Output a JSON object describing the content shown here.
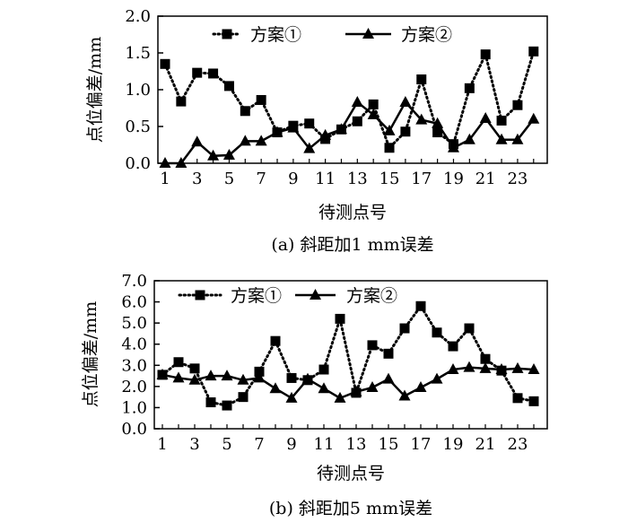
{
  "chart_data": [
    {
      "type": "line",
      "caption": "(a) 斜距加1 mm误差",
      "xlabel": "待测点号",
      "ylabel": "点位偏差/mm",
      "ylim": [
        0,
        2.0
      ],
      "yticks": [
        "0.0",
        "0.5",
        "1.0",
        "1.5",
        "2.0"
      ],
      "xticks": [
        "1",
        "3",
        "5",
        "7",
        "9",
        "11",
        "13",
        "15",
        "17",
        "19",
        "21",
        "23"
      ],
      "legend_position": "top",
      "x": [
        1,
        2,
        3,
        4,
        5,
        6,
        7,
        8,
        9,
        10,
        11,
        12,
        13,
        14,
        15,
        16,
        17,
        18,
        19,
        20,
        21,
        22,
        23,
        24
      ],
      "series": [
        {
          "name": "方案①",
          "style": "dotted-square",
          "color": "#000000",
          "values": [
            1.35,
            0.84,
            1.23,
            1.22,
            1.05,
            0.71,
            0.86,
            0.42,
            0.51,
            0.54,
            0.33,
            0.46,
            0.57,
            0.8,
            0.21,
            0.43,
            1.14,
            0.42,
            0.26,
            1.02,
            1.48,
            0.58,
            0.79,
            1.52
          ]
        },
        {
          "name": "方案②",
          "style": "solid-triangle",
          "color": "#000000",
          "values": [
            0.0,
            0.0,
            0.29,
            0.1,
            0.11,
            0.3,
            0.3,
            0.42,
            0.48,
            0.2,
            0.38,
            0.46,
            0.83,
            0.66,
            0.44,
            0.83,
            0.59,
            0.54,
            0.21,
            0.32,
            0.61,
            0.32,
            0.32,
            0.6
          ]
        }
      ]
    },
    {
      "type": "line",
      "caption": "(b) 斜距加5 mm误差",
      "xlabel": "待测点号",
      "ylabel": "点位偏差/mm",
      "ylim": [
        0,
        7.0
      ],
      "yticks": [
        "0.0",
        "1.0",
        "2.0",
        "3.0",
        "4.0",
        "5.0",
        "6.0",
        "7.0"
      ],
      "xticks": [
        "1",
        "3",
        "5",
        "7",
        "9",
        "11",
        "13",
        "15",
        "17",
        "19",
        "21",
        "23"
      ],
      "legend_position": "top",
      "x": [
        1,
        2,
        3,
        4,
        5,
        6,
        7,
        8,
        9,
        10,
        11,
        12,
        13,
        14,
        15,
        16,
        17,
        18,
        19,
        20,
        21,
        22,
        23,
        24
      ],
      "series": [
        {
          "name": "方案①",
          "style": "dotted-square",
          "color": "#000000",
          "values": [
            2.55,
            3.15,
            2.85,
            1.25,
            1.1,
            1.5,
            2.7,
            4.15,
            2.4,
            2.3,
            2.8,
            5.2,
            1.7,
            3.95,
            3.55,
            4.75,
            5.8,
            4.55,
            3.9,
            4.75,
            3.3,
            2.75,
            1.45,
            1.3
          ]
        },
        {
          "name": "方案②",
          "style": "solid-triangle",
          "color": "#000000",
          "values": [
            2.55,
            2.4,
            2.3,
            2.5,
            2.5,
            2.3,
            2.4,
            1.9,
            1.45,
            2.35,
            1.9,
            1.45,
            1.75,
            1.95,
            2.35,
            1.55,
            1.95,
            2.35,
            2.8,
            2.9,
            2.85,
            2.8,
            2.85,
            2.8
          ]
        }
      ]
    }
  ]
}
